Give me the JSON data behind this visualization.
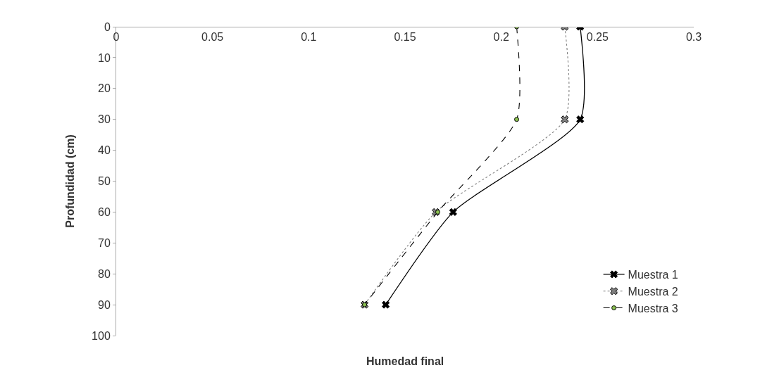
{
  "chart_data": {
    "type": "line",
    "xlabel": "Humedad final",
    "ylabel": "Profundidad (cm)",
    "xlim": [
      0,
      0.3
    ],
    "xticks": [
      0,
      0.05,
      0.1,
      0.15,
      0.2,
      0.25,
      0.3
    ],
    "ylim": [
      100,
      0
    ],
    "yticks": [
      0,
      10,
      20,
      30,
      40,
      50,
      60,
      70,
      80,
      90,
      100
    ],
    "grid": false,
    "legend": "bottom right",
    "series": [
      {
        "name": "Muestra 1",
        "color": "#000000",
        "marker": "cross",
        "line_style": "solid",
        "x": [
          0.241,
          0.241,
          0.175,
          0.14
        ],
        "values": [
          0,
          30,
          60,
          90
        ]
      },
      {
        "name": "Muestra 2",
        "color": "#808080",
        "marker": "cross",
        "line_style": "dotted",
        "x": [
          0.233,
          0.233,
          0.166,
          0.129
        ],
        "values": [
          0,
          30,
          60,
          90
        ]
      },
      {
        "name": "Muestra 3",
        "color": "#8cc152",
        "marker": "circle",
        "line_style": "dashed",
        "x": [
          0.208,
          0.208,
          0.167,
          0.129
        ],
        "values": [
          0,
          30,
          60,
          90
        ]
      }
    ]
  }
}
